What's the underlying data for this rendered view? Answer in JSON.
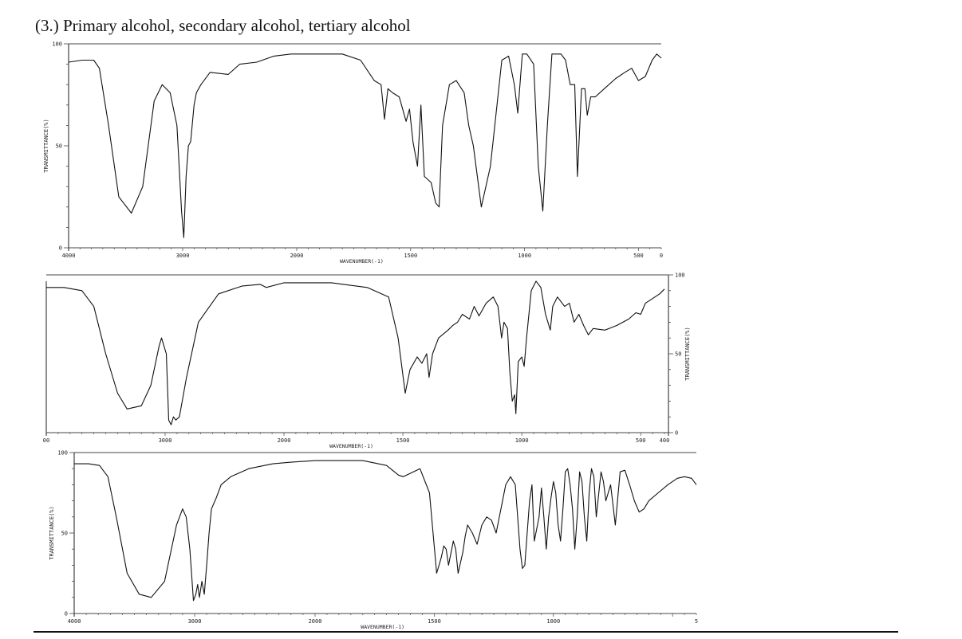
{
  "heading": "(3.)  Primary alcohol, secondary alcohol, tertiary alcohol",
  "colors": {
    "trace": "#111111",
    "frame": "#444444"
  },
  "chart_data": [
    {
      "type": "line",
      "title": "",
      "xlabel": "WAVENUMBER(-1)",
      "ylabel": "TRANSMITTANCE(%)",
      "xlim": [
        4000,
        400
      ],
      "ylim": [
        0,
        100
      ],
      "xticks": [
        "4000",
        "3000",
        "2000",
        "1500",
        "1000",
        "500",
        "0"
      ],
      "yticks": [
        "100",
        "50",
        "0"
      ],
      "yaxis_side": "left",
      "grid": false,
      "series": [
        {
          "x": [
            4000,
            3880,
            3780,
            3730,
            3650,
            3560,
            3450,
            3350,
            3250,
            3180,
            3110,
            3050,
            3010,
            2990,
            2970,
            2950,
            2930,
            2900,
            2880,
            2840,
            2760,
            2600,
            2500,
            2350,
            2200,
            2050,
            1900,
            1800,
            1720,
            1660,
            1630,
            1615,
            1600,
            1580,
            1550,
            1520,
            1505,
            1490,
            1470,
            1455,
            1440,
            1410,
            1390,
            1375,
            1360,
            1330,
            1300,
            1265,
            1245,
            1225,
            1190,
            1150,
            1100,
            1070,
            1045,
            1030,
            1010,
            990,
            960,
            940,
            920,
            900,
            880,
            860,
            840,
            820,
            800,
            780,
            768,
            750,
            735,
            725,
            710,
            690,
            650,
            600,
            560,
            530,
            500,
            470,
            440,
            420,
            400
          ],
          "y": [
            91,
            92,
            92,
            88,
            60,
            25,
            17,
            30,
            72,
            80,
            76,
            60,
            18,
            5,
            35,
            50,
            52,
            70,
            76,
            80,
            86,
            85,
            90,
            91,
            94,
            95,
            95,
            95,
            92,
            82,
            80,
            63,
            78,
            76,
            74,
            62,
            68,
            52,
            40,
            70,
            35,
            32,
            22,
            20,
            60,
            80,
            82,
            76,
            60,
            50,
            20,
            40,
            92,
            94,
            80,
            66,
            95,
            95,
            90,
            40,
            18,
            60,
            95,
            95,
            95,
            92,
            80,
            80,
            35,
            78,
            78,
            65,
            74,
            74,
            78,
            83,
            86,
            88,
            82,
            84,
            92,
            95,
            93
          ]
        }
      ]
    },
    {
      "type": "line",
      "title": "",
      "xlabel": "WAVENUMBER(-1)",
      "ylabel": "TRANSMITTANCE(%)",
      "xlim": [
        4000,
        400
      ],
      "ylim": [
        0,
        100
      ],
      "xticks": [
        "00",
        "3000",
        "2000",
        "1500",
        "1000",
        "500",
        "400"
      ],
      "yticks": [
        "100",
        "50",
        "0"
      ],
      "yaxis_side": "right",
      "grid": false,
      "series": [
        {
          "x": [
            4000,
            3850,
            3700,
            3600,
            3500,
            3400,
            3320,
            3200,
            3120,
            3050,
            3030,
            2990,
            2970,
            2950,
            2930,
            2910,
            2880,
            2820,
            2720,
            2550,
            2350,
            2200,
            2150,
            2000,
            1800,
            1650,
            1560,
            1520,
            1490,
            1470,
            1440,
            1420,
            1400,
            1390,
            1375,
            1350,
            1310,
            1290,
            1270,
            1250,
            1220,
            1200,
            1180,
            1150,
            1120,
            1100,
            1085,
            1075,
            1060,
            1050,
            1040,
            1030,
            1025,
            1015,
            1000,
            990,
            980,
            960,
            940,
            920,
            900,
            880,
            870,
            850,
            820,
            800,
            780,
            760,
            740,
            720,
            700,
            650,
            600,
            550,
            520,
            500,
            480,
            450,
            420,
            400
          ],
          "y": [
            92,
            92,
            90,
            80,
            50,
            25,
            15,
            17,
            30,
            55,
            60,
            50,
            8,
            5,
            10,
            8,
            10,
            35,
            70,
            88,
            93,
            94,
            92,
            95,
            95,
            92,
            86,
            60,
            25,
            40,
            48,
            44,
            50,
            35,
            50,
            60,
            65,
            68,
            70,
            75,
            72,
            80,
            74,
            82,
            86,
            80,
            60,
            70,
            66,
            38,
            20,
            24,
            12,
            45,
            48,
            42,
            60,
            90,
            96,
            92,
            75,
            65,
            80,
            86,
            80,
            82,
            70,
            75,
            68,
            62,
            66,
            65,
            68,
            72,
            76,
            75,
            82,
            85,
            88,
            91
          ]
        }
      ]
    },
    {
      "type": "line",
      "title": "",
      "xlabel": "WAVENUMBER(-1)",
      "ylabel": "TRANSMITTANCE(%)",
      "xlim": [
        4000,
        400
      ],
      "ylim": [
        0,
        100
      ],
      "xticks": [
        "4000",
        "3000",
        "2000",
        "1500",
        "1000",
        "5"
      ],
      "yticks": [
        "100",
        "50",
        "0"
      ],
      "yaxis_side": "left",
      "grid": false,
      "series": [
        {
          "x": [
            4000,
            3880,
            3790,
            3720,
            3650,
            3560,
            3460,
            3360,
            3250,
            3150,
            3100,
            3070,
            3040,
            3010,
            2990,
            2975,
            2960,
            2940,
            2920,
            2900,
            2880,
            2860,
            2820,
            2780,
            2700,
            2550,
            2350,
            2200,
            2000,
            1800,
            1700,
            1650,
            1630,
            1560,
            1520,
            1490,
            1480,
            1470,
            1460,
            1450,
            1440,
            1420,
            1410,
            1400,
            1380,
            1370,
            1360,
            1340,
            1320,
            1300,
            1280,
            1260,
            1240,
            1220,
            1200,
            1180,
            1160,
            1140,
            1130,
            1120,
            1110,
            1100,
            1090,
            1080,
            1060,
            1050,
            1040,
            1030,
            1020,
            1010,
            1000,
            990,
            980,
            970,
            960,
            950,
            940,
            930,
            920,
            910,
            900,
            890,
            880,
            870,
            860,
            850,
            840,
            830,
            820,
            800,
            790,
            780,
            760,
            740,
            720,
            700,
            680,
            660,
            640,
            620,
            600,
            560,
            520,
            480,
            450,
            420,
            400
          ],
          "y": [
            93,
            93,
            92,
            85,
            60,
            25,
            12,
            10,
            20,
            55,
            65,
            60,
            40,
            8,
            12,
            18,
            10,
            20,
            12,
            30,
            50,
            65,
            72,
            80,
            85,
            90,
            93,
            94,
            95,
            95,
            92,
            86,
            85,
            90,
            75,
            25,
            30,
            35,
            42,
            40,
            30,
            45,
            40,
            25,
            38,
            48,
            55,
            50,
            43,
            55,
            60,
            58,
            50,
            65,
            80,
            85,
            80,
            40,
            28,
            30,
            50,
            70,
            80,
            45,
            60,
            78,
            60,
            40,
            60,
            72,
            82,
            75,
            55,
            45,
            65,
            88,
            90,
            80,
            65,
            40,
            60,
            88,
            82,
            60,
            45,
            75,
            90,
            85,
            60,
            88,
            82,
            70,
            80,
            55,
            88,
            89,
            80,
            70,
            63,
            65,
            70,
            75,
            80,
            84,
            85,
            84,
            80
          ]
        }
      ]
    }
  ]
}
